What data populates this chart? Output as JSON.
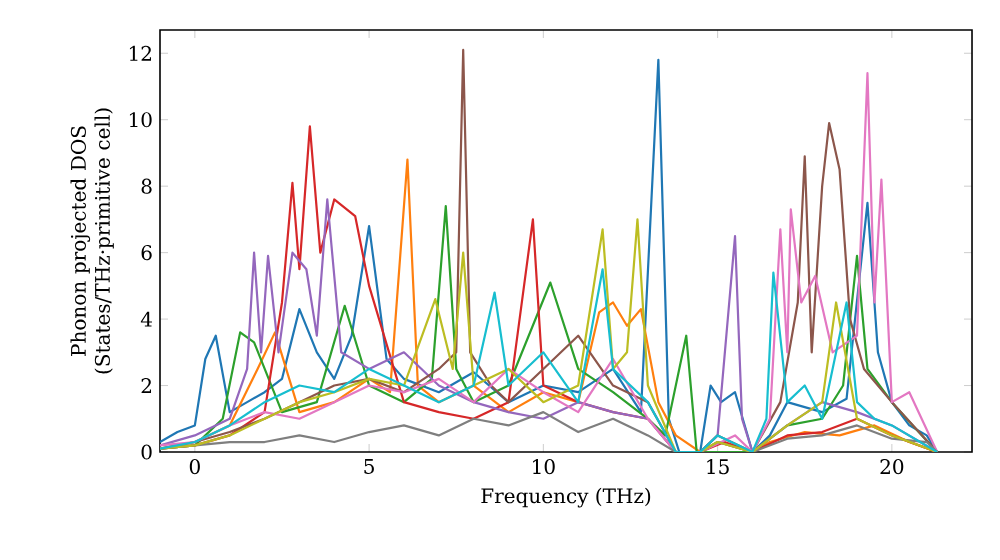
{
  "chart_data": {
    "type": "line",
    "xlabel": "Frequency (THz)",
    "ylabel": "Phonon projected DOS (States/THz·primitive cell)",
    "xlim": [
      -1,
      22.3
    ],
    "ylim": [
      0,
      12.7
    ],
    "xticks": [
      0,
      5,
      10,
      15,
      20
    ],
    "yticks": [
      0,
      2,
      4,
      6,
      8,
      10,
      12
    ],
    "line_style": "solid",
    "series": [
      {
        "color": "#1f77b4",
        "x": [
          -1,
          -0.5,
          0,
          0.3,
          0.6,
          1,
          1.5,
          2,
          2.5,
          3,
          3.5,
          4,
          4.5,
          5,
          5.5,
          6,
          7,
          8,
          9,
          10,
          11,
          12,
          12.8,
          13.3,
          13.6,
          13.9,
          14.5,
          14.8,
          15.1,
          15.5,
          16,
          16.5,
          17,
          18,
          18.7,
          19.3,
          19.6,
          20,
          20.5,
          21,
          21.3
        ],
        "values": [
          0.3,
          0.6,
          0.8,
          2.8,
          3.5,
          1.2,
          1.5,
          1.8,
          2.2,
          4.3,
          3.0,
          2.2,
          3.5,
          6.8,
          2.8,
          2.2,
          1.8,
          2.4,
          1.5,
          2.0,
          1.8,
          2.5,
          1.2,
          11.8,
          1.0,
          0,
          0,
          2.0,
          1.5,
          1.8,
          0,
          0.5,
          1.5,
          1.2,
          1.6,
          7.5,
          3.0,
          1.5,
          0.8,
          0.5,
          0
        ]
      },
      {
        "color": "#ff7f0e",
        "x": [
          -1,
          0,
          1,
          1.8,
          2.3,
          3,
          4,
          5,
          5.6,
          6.1,
          6.4,
          7,
          8,
          9,
          10,
          11,
          11.6,
          12,
          12.4,
          12.8,
          13.3,
          13.8,
          14.5,
          15,
          16,
          16.5,
          17.5,
          18.5,
          19.5,
          20.5,
          21.3
        ],
        "values": [
          0.1,
          0.3,
          0.8,
          2.5,
          3.6,
          1.2,
          1.5,
          2.2,
          1.8,
          8.8,
          2.0,
          1.5,
          2.0,
          1.2,
          1.8,
          1.5,
          4.2,
          4.5,
          3.8,
          4.3,
          1.5,
          0.5,
          0,
          0.3,
          0,
          0.3,
          0.6,
          0.5,
          0.8,
          0.3,
          0
        ]
      },
      {
        "color": "#2ca02c",
        "x": [
          -1,
          0,
          0.8,
          1.3,
          1.7,
          2.5,
          3.5,
          4.3,
          5,
          6,
          6.8,
          7.2,
          7.5,
          8,
          9,
          10.2,
          11,
          12,
          13,
          13.5,
          14.1,
          14.4,
          15,
          16,
          17,
          18,
          18.6,
          19.0,
          19.3,
          20,
          20.6,
          21.3
        ],
        "values": [
          0.1,
          0.2,
          1.0,
          3.6,
          3.3,
          1.2,
          1.5,
          4.4,
          2.0,
          1.5,
          2.2,
          7.4,
          2.5,
          1.5,
          2.0,
          5.1,
          2.5,
          1.8,
          1.0,
          0.5,
          3.5,
          0,
          0,
          0,
          0.8,
          1.0,
          2.0,
          5.9,
          2.5,
          1.5,
          0.8,
          0
        ]
      },
      {
        "color": "#d62728",
        "x": [
          -1,
          0,
          1,
          2,
          2.5,
          2.8,
          3.0,
          3.3,
          3.6,
          4.0,
          4.6,
          5,
          6,
          7,
          8,
          9,
          9.7,
          10,
          11,
          12,
          13,
          13.8,
          14.5,
          15.2,
          16,
          17,
          18,
          19,
          20,
          21.3
        ],
        "values": [
          0.1,
          0.2,
          0.5,
          1.2,
          4.5,
          8.1,
          5.5,
          9.8,
          6.0,
          7.6,
          7.1,
          5.0,
          1.5,
          1.2,
          1.0,
          1.5,
          7.0,
          2.0,
          1.5,
          1.2,
          1.0,
          0,
          0,
          0.3,
          0,
          0.5,
          0.6,
          1.0,
          0.5,
          0
        ]
      },
      {
        "color": "#9467bd",
        "x": [
          -1,
          0,
          1,
          1.5,
          1.7,
          1.9,
          2.1,
          2.4,
          2.8,
          3.2,
          3.5,
          3.8,
          4.2,
          5,
          6,
          7,
          8,
          9,
          10,
          11,
          12,
          13,
          13.8,
          14.5,
          15.0,
          15.5,
          15.7,
          16,
          17,
          18,
          19,
          20,
          21.3
        ],
        "values": [
          0.2,
          0.5,
          1.0,
          2.5,
          6.0,
          3.0,
          5.9,
          3.0,
          6.0,
          5.5,
          3.5,
          7.6,
          3.0,
          2.5,
          3.0,
          2.0,
          1.5,
          1.2,
          1.0,
          1.5,
          1.2,
          1.0,
          0,
          0,
          0.5,
          6.5,
          1.0,
          0,
          0.8,
          1.5,
          1.2,
          0.8,
          0
        ]
      },
      {
        "color": "#8c564b",
        "x": [
          -1,
          0,
          1,
          2,
          3,
          4,
          5,
          6,
          7,
          7.5,
          7.7,
          7.9,
          8.5,
          9,
          10,
          11,
          12,
          13,
          13.8,
          14.5,
          15,
          16,
          16.8,
          17.3,
          17.5,
          17.7,
          18.0,
          18.2,
          18.5,
          18.8,
          19.2,
          20,
          21.3
        ],
        "values": [
          0.1,
          0.3,
          0.6,
          1.0,
          1.5,
          2.0,
          2.2,
          1.8,
          2.5,
          3.0,
          12.1,
          3.0,
          2.0,
          1.5,
          2.5,
          3.5,
          2.0,
          1.5,
          0,
          0,
          0.5,
          0,
          1.5,
          4.5,
          8.9,
          3.0,
          8.0,
          9.9,
          8.5,
          4.0,
          2.5,
          1.5,
          0
        ]
      },
      {
        "color": "#e377c2",
        "x": [
          -1,
          0,
          1,
          2,
          3,
          4,
          5,
          6,
          7,
          8,
          9,
          10,
          11,
          12,
          13,
          13.8,
          14.5,
          15.5,
          16,
          16.5,
          16.8,
          17.0,
          17.1,
          17.4,
          17.8,
          18.3,
          19.0,
          19.3,
          19.5,
          19.7,
          20,
          20.5,
          21.3
        ],
        "values": [
          0.2,
          0.3,
          0.8,
          1.2,
          1.0,
          1.5,
          2.0,
          1.8,
          2.2,
          1.5,
          2.5,
          1.8,
          1.2,
          2.8,
          1.0,
          0,
          0,
          0.5,
          0,
          1.0,
          6.7,
          3.0,
          7.3,
          4.5,
          5.3,
          3.0,
          3.5,
          11.4,
          4.5,
          8.2,
          1.5,
          1.8,
          0
        ]
      },
      {
        "color": "#7f7f7f",
        "x": [
          -1,
          0,
          1,
          2,
          3,
          4,
          5,
          6,
          7,
          8,
          9,
          10,
          11,
          12,
          13,
          13.8,
          14.5,
          15,
          16,
          17,
          18,
          19,
          20,
          21,
          21.3
        ],
        "values": [
          0.1,
          0.2,
          0.3,
          0.3,
          0.5,
          0.3,
          0.6,
          0.8,
          0.5,
          1.0,
          0.8,
          1.2,
          0.6,
          1.0,
          0.5,
          0,
          0,
          0.3,
          0,
          0.4,
          0.5,
          0.8,
          0.4,
          0.3,
          0
        ]
      },
      {
        "color": "#bcbd22",
        "x": [
          -1,
          0,
          1,
          2,
          3,
          4,
          5,
          6,
          6.9,
          7.4,
          7.7,
          8,
          9,
          10,
          11,
          11.7,
          12,
          12.4,
          12.7,
          13,
          13.8,
          14.5,
          15,
          16,
          17,
          18,
          18.4,
          19,
          20,
          21.3
        ],
        "values": [
          0.1,
          0.2,
          0.5,
          1.0,
          1.5,
          1.8,
          2.2,
          2.0,
          4.6,
          2.5,
          6.0,
          2.0,
          2.5,
          1.5,
          2.0,
          6.7,
          2.5,
          3.0,
          7.0,
          2.0,
          0,
          0,
          0.3,
          0,
          0.8,
          1.5,
          4.5,
          1.0,
          0.5,
          0
        ]
      },
      {
        "color": "#17becf",
        "x": [
          -1,
          0,
          1,
          2,
          3,
          4,
          5,
          6,
          7,
          8,
          8.6,
          9,
          10,
          11,
          11.7,
          12,
          13,
          13.8,
          14.5,
          15,
          16,
          16.4,
          16.6,
          17,
          17.5,
          18,
          18.7,
          19,
          19.5,
          20,
          21.3
        ],
        "values": [
          0.1,
          0.3,
          0.8,
          1.5,
          2.0,
          1.8,
          2.5,
          2.0,
          1.5,
          2.0,
          4.8,
          2.0,
          3.0,
          1.5,
          5.5,
          2.5,
          1.5,
          0,
          0,
          0.5,
          0,
          1.0,
          5.4,
          1.5,
          2.0,
          1.0,
          4.5,
          1.5,
          1.0,
          0.8,
          0
        ]
      }
    ]
  }
}
